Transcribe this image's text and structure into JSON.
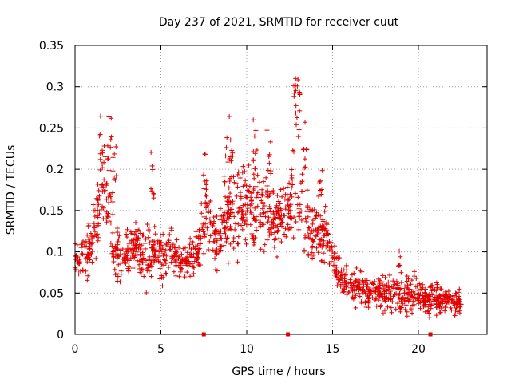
{
  "chart_data": {
    "type": "scatter",
    "title": "Day 237 of 2021, SRMTID for receiver cuut",
    "xlabel": "GPS time / hours",
    "ylabel": "SRMTID / TECUs",
    "xlim": [
      0,
      24
    ],
    "ylim": [
      0,
      0.35
    ],
    "x_ticks": [
      "0",
      "5",
      "10",
      "15",
      "20"
    ],
    "y_ticks": [
      "0",
      "0.05",
      "0.1",
      "0.15",
      "0.2",
      "0.25",
      "0.3",
      "0.35"
    ],
    "grid": true,
    "marker": "plus",
    "color": "#e00000",
    "baseline_markers_x": [
      7.5,
      12.4,
      20.7
    ],
    "envelope": {
      "x": [
        0.0,
        0.5,
        1.0,
        1.3,
        1.6,
        2.0,
        2.3,
        2.7,
        3.0,
        3.5,
        4.0,
        4.3,
        4.6,
        5.0,
        5.5,
        6.0,
        6.5,
        7.0,
        7.5,
        7.8,
        8.2,
        8.6,
        9.0,
        9.5,
        10.0,
        10.5,
        11.0,
        11.5,
        12.0,
        12.4,
        12.7,
        13.0,
        13.4,
        13.8,
        14.2,
        14.6,
        15.0,
        15.5,
        16.0,
        16.5,
        17.0,
        17.5,
        18.0,
        18.5,
        19.0,
        19.5,
        20.0,
        20.5,
        21.0,
        21.5,
        22.0,
        22.5
      ],
      "mid": [
        0.09,
        0.1,
        0.11,
        0.15,
        0.18,
        0.16,
        0.1,
        0.09,
        0.1,
        0.11,
        0.09,
        0.1,
        0.1,
        0.1,
        0.1,
        0.09,
        0.09,
        0.1,
        0.13,
        0.14,
        0.11,
        0.12,
        0.15,
        0.15,
        0.16,
        0.15,
        0.15,
        0.14,
        0.14,
        0.15,
        0.16,
        0.17,
        0.14,
        0.12,
        0.12,
        0.12,
        0.09,
        0.07,
        0.06,
        0.06,
        0.05,
        0.05,
        0.05,
        0.05,
        0.045,
        0.05,
        0.05,
        0.04,
        0.045,
        0.04,
        0.04,
        0.04
      ],
      "spread": [
        0.03,
        0.04,
        0.05,
        0.07,
        0.08,
        0.07,
        0.05,
        0.04,
        0.04,
        0.04,
        0.05,
        0.06,
        0.04,
        0.05,
        0.04,
        0.03,
        0.03,
        0.04,
        0.05,
        0.06,
        0.05,
        0.06,
        0.08,
        0.07,
        0.07,
        0.08,
        0.06,
        0.06,
        0.05,
        0.06,
        0.09,
        0.1,
        0.07,
        0.05,
        0.05,
        0.05,
        0.04,
        0.03,
        0.03,
        0.03,
        0.025,
        0.03,
        0.03,
        0.03,
        0.03,
        0.03,
        0.03,
        0.025,
        0.025,
        0.02,
        0.02,
        0.02
      ]
    },
    "peaks": [
      {
        "x": 1.5,
        "y": 0.265
      },
      {
        "x": 2.0,
        "y": 0.27
      },
      {
        "x": 2.3,
        "y": 0.23
      },
      {
        "x": 4.5,
        "y": 0.225
      },
      {
        "x": 7.6,
        "y": 0.22
      },
      {
        "x": 8.8,
        "y": 0.24
      },
      {
        "x": 9.1,
        "y": 0.265
      },
      {
        "x": 10.5,
        "y": 0.26
      },
      {
        "x": 11.3,
        "y": 0.25
      },
      {
        "x": 12.8,
        "y": 0.32
      },
      {
        "x": 13.0,
        "y": 0.31
      },
      {
        "x": 13.4,
        "y": 0.26
      },
      {
        "x": 14.3,
        "y": 0.21
      },
      {
        "x": 18.9,
        "y": 0.11
      }
    ]
  }
}
